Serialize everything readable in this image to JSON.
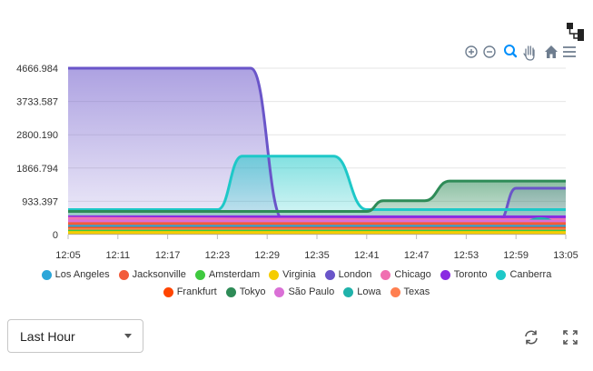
{
  "toolbar": {
    "icons": [
      "zoom-in-icon",
      "zoom-out-icon",
      "selection-zoom-icon",
      "pan-hand-icon",
      "reset-home-icon",
      "menu-icon"
    ]
  },
  "corner_icon": "hierarchy-icon",
  "controls": {
    "range_value": "Last Hour",
    "refresh_icon": "refresh-icon",
    "fullscreen_icon": "expand-icon"
  },
  "chart_data": {
    "type": "area",
    "x_ticks": [
      "12:05",
      "12:11",
      "12:17",
      "12:23",
      "12:29",
      "12:35",
      "12:41",
      "12:47",
      "12:53",
      "12:59",
      "13:05"
    ],
    "y_ticks": [
      "0",
      "933.397",
      "1866.794",
      "2800.190",
      "3733.587",
      "4666.984"
    ],
    "ylim": [
      0,
      4666.984
    ],
    "xlim": [
      "12:05",
      "13:05"
    ],
    "grid": true,
    "legend_position": "bottom",
    "series": [
      {
        "name": "Los Angeles",
        "color": "#2ba6d9",
        "points": [
          [
            "12:05",
            230
          ],
          [
            "13:05",
            230
          ]
        ]
      },
      {
        "name": "Jacksonville",
        "color": "#f25c3b",
        "points": [
          [
            "12:05",
            310
          ],
          [
            "13:05",
            310
          ]
        ]
      },
      {
        "name": "Amsterdam",
        "color": "#3fc93f",
        "points": [
          [
            "12:05",
            100
          ],
          [
            "13:05",
            100
          ]
        ]
      },
      {
        "name": "Virginia",
        "color": "#f5cc00",
        "points": [
          [
            "12:05",
            60
          ],
          [
            "13:05",
            60
          ]
        ]
      },
      {
        "name": "London",
        "color": "#6a55c9",
        "points": [
          [
            "12:05",
            4666.984
          ],
          [
            "12:27",
            4666.984
          ],
          [
            "12:31",
            400
          ],
          [
            "12:57",
            400
          ],
          [
            "12:59",
            1300
          ],
          [
            "13:05",
            1300
          ]
        ]
      },
      {
        "name": "Chicago",
        "color": "#f06fb1",
        "points": [
          [
            "12:05",
            460
          ],
          [
            "12:41",
            420
          ],
          [
            "12:59",
            420
          ],
          [
            "13:05",
            420
          ]
        ]
      },
      {
        "name": "Toronto",
        "color": "#8a2be2",
        "points": [
          [
            "12:05",
            500
          ],
          [
            "13:05",
            500
          ]
        ]
      },
      {
        "name": "Canberra",
        "color": "#1ec8c8",
        "points": [
          [
            "12:05",
            700
          ],
          [
            "12:23",
            700
          ],
          [
            "12:26",
            2200
          ],
          [
            "12:37",
            2200
          ],
          [
            "12:41",
            700
          ],
          [
            "13:05",
            700
          ]
        ]
      },
      {
        "name": "Frankfurt",
        "color": "#ff4500",
        "points": [
          [
            "12:05",
            180
          ],
          [
            "13:05",
            180
          ]
        ]
      },
      {
        "name": "Tokyo",
        "color": "#2e8b57",
        "points": [
          [
            "12:05",
            650
          ],
          [
            "12:41",
            650
          ],
          [
            "12:43",
            950
          ],
          [
            "12:48",
            950
          ],
          [
            "12:51",
            1500
          ],
          [
            "13:05",
            1500
          ]
        ]
      },
      {
        "name": "São Paulo",
        "color": "#da70d6",
        "points": [
          [
            "12:05",
            380
          ],
          [
            "13:05",
            380
          ]
        ]
      },
      {
        "name": "Lowa",
        "color": "#20b2aa",
        "points": [
          [
            "12:05",
            280
          ],
          [
            "12:59",
            280
          ],
          [
            "13:02",
            450
          ],
          [
            "13:05",
            250
          ]
        ]
      },
      {
        "name": "Texas",
        "color": "#ff7f50",
        "points": [
          [
            "12:05",
            150
          ],
          [
            "13:05",
            150
          ]
        ]
      }
    ],
    "legend_rows": [
      [
        "Los Angeles",
        "Jacksonville",
        "Amsterdam",
        "Virginia",
        "London",
        "Chicago",
        "Toronto",
        "Canberra"
      ],
      [
        "Frankfurt",
        "Tokyo",
        "São Paulo",
        "Lowa",
        "Texas"
      ]
    ]
  }
}
